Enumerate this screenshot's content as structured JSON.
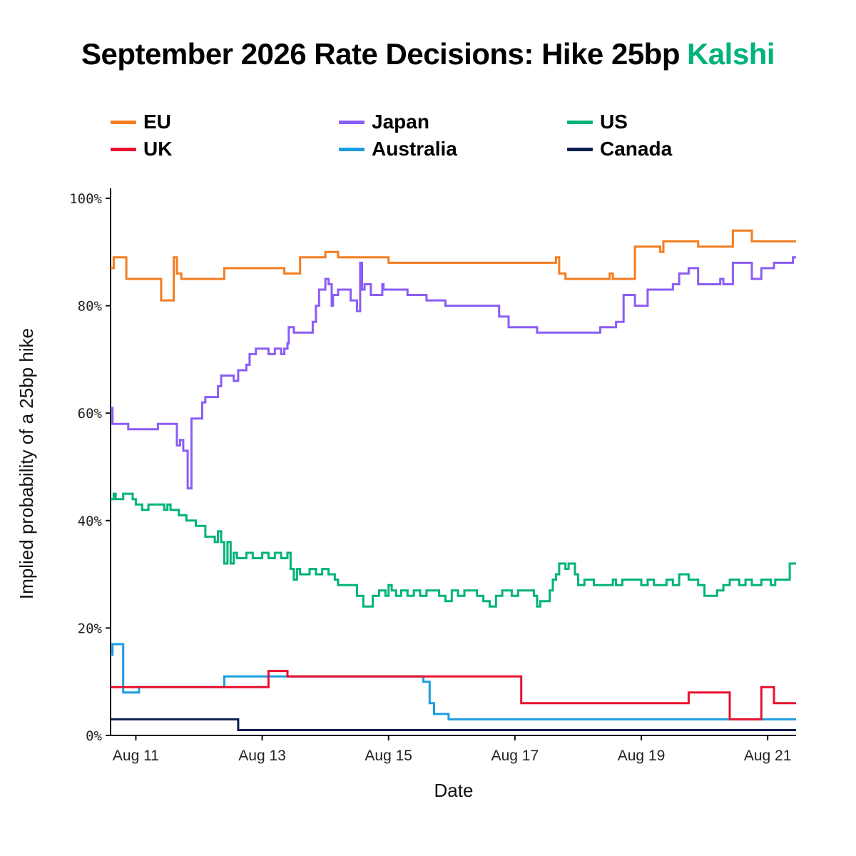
{
  "header": {
    "title": "September 2026 Rate Decisions: Hike 25bp",
    "brand": "Kalshi",
    "brand_color": "#00b27b"
  },
  "chart_data": {
    "type": "line",
    "step": true,
    "xlabel": "Date",
    "ylabel": "Implied probability of a 25bp hike",
    "xlim": [
      10.6,
      21.45
    ],
    "ylim": [
      0,
      100
    ],
    "yticks": [
      0,
      20,
      40,
      60,
      80,
      100
    ],
    "ytick_labels": [
      "0%",
      "20%",
      "40%",
      "60%",
      "80%",
      "100%"
    ],
    "xticks": [
      11,
      13,
      15,
      17,
      19,
      21
    ],
    "xtick_labels": [
      "Aug 11",
      "Aug 13",
      "Aug 15",
      "Aug 17",
      "Aug 19",
      "Aug 21"
    ],
    "grid": false,
    "legend_position": "top",
    "series": [
      {
        "name": "EU",
        "color": "#f57c1f",
        "points": [
          [
            10.6,
            87
          ],
          [
            10.65,
            89
          ],
          [
            10.85,
            85
          ],
          [
            11.4,
            81
          ],
          [
            11.6,
            89
          ],
          [
            11.65,
            86
          ],
          [
            11.72,
            85
          ],
          [
            12.4,
            87
          ],
          [
            13.35,
            86
          ],
          [
            13.6,
            89
          ],
          [
            14.0,
            90
          ],
          [
            14.2,
            89
          ],
          [
            14.38,
            89
          ],
          [
            15.0,
            88
          ],
          [
            16.2,
            88
          ],
          [
            17.65,
            89
          ],
          [
            17.7,
            86
          ],
          [
            17.8,
            85
          ],
          [
            18.5,
            86
          ],
          [
            18.55,
            85
          ],
          [
            18.9,
            91
          ],
          [
            19.3,
            90
          ],
          [
            19.35,
            92
          ],
          [
            19.9,
            91
          ],
          [
            20.3,
            91
          ],
          [
            20.45,
            94
          ],
          [
            20.75,
            92
          ],
          [
            21.45,
            92
          ]
        ]
      },
      {
        "name": "Japan",
        "color": "#8b5cf6",
        "points": [
          [
            10.6,
            61
          ],
          [
            10.63,
            58
          ],
          [
            10.88,
            57
          ],
          [
            11.35,
            58
          ],
          [
            11.65,
            54
          ],
          [
            11.7,
            55
          ],
          [
            11.75,
            53
          ],
          [
            11.82,
            46
          ],
          [
            11.88,
            59
          ],
          [
            12.05,
            62
          ],
          [
            12.1,
            63
          ],
          [
            12.3,
            65
          ],
          [
            12.35,
            67
          ],
          [
            12.55,
            66
          ],
          [
            12.62,
            68
          ],
          [
            12.75,
            69
          ],
          [
            12.8,
            71
          ],
          [
            12.9,
            72
          ],
          [
            13.0,
            72
          ],
          [
            13.1,
            71
          ],
          [
            13.2,
            72
          ],
          [
            13.3,
            71
          ],
          [
            13.35,
            72
          ],
          [
            13.4,
            73
          ],
          [
            13.42,
            76
          ],
          [
            13.5,
            75
          ],
          [
            13.8,
            77
          ],
          [
            13.85,
            80
          ],
          [
            13.9,
            83
          ],
          [
            14.0,
            85
          ],
          [
            14.05,
            84
          ],
          [
            14.1,
            80
          ],
          [
            14.12,
            82
          ],
          [
            14.2,
            83
          ],
          [
            14.4,
            81
          ],
          [
            14.5,
            79
          ],
          [
            14.55,
            88
          ],
          [
            14.58,
            83
          ],
          [
            14.62,
            84
          ],
          [
            14.72,
            82
          ],
          [
            14.9,
            84
          ],
          [
            14.92,
            83
          ],
          [
            15.3,
            82
          ],
          [
            15.6,
            81
          ],
          [
            15.9,
            80
          ],
          [
            16.75,
            78
          ],
          [
            16.9,
            76
          ],
          [
            17.35,
            75
          ],
          [
            18.1,
            75
          ],
          [
            18.35,
            76
          ],
          [
            18.6,
            77
          ],
          [
            18.72,
            82
          ],
          [
            18.9,
            80
          ],
          [
            19.1,
            83
          ],
          [
            19.5,
            84
          ],
          [
            19.6,
            86
          ],
          [
            19.75,
            87
          ],
          [
            19.9,
            84
          ],
          [
            20.25,
            85
          ],
          [
            20.3,
            84
          ],
          [
            20.45,
            88
          ],
          [
            20.75,
            85
          ],
          [
            20.9,
            87
          ],
          [
            21.1,
            88
          ],
          [
            21.4,
            89
          ],
          [
            21.45,
            89
          ]
        ]
      },
      {
        "name": "US",
        "color": "#00b27b",
        "points": [
          [
            10.6,
            44
          ],
          [
            10.65,
            45
          ],
          [
            10.68,
            44
          ],
          [
            10.8,
            45
          ],
          [
            10.95,
            44
          ],
          [
            11.0,
            43
          ],
          [
            11.1,
            42
          ],
          [
            11.2,
            43
          ],
          [
            11.45,
            42
          ],
          [
            11.5,
            43
          ],
          [
            11.55,
            42
          ],
          [
            11.68,
            41
          ],
          [
            11.8,
            40
          ],
          [
            11.95,
            39
          ],
          [
            12.1,
            37
          ],
          [
            12.25,
            36
          ],
          [
            12.3,
            38
          ],
          [
            12.35,
            36
          ],
          [
            12.4,
            32
          ],
          [
            12.45,
            36
          ],
          [
            12.5,
            32
          ],
          [
            12.55,
            34
          ],
          [
            12.6,
            33
          ],
          [
            12.75,
            34
          ],
          [
            12.85,
            33
          ],
          [
            13.0,
            34
          ],
          [
            13.1,
            33
          ],
          [
            13.2,
            34
          ],
          [
            13.3,
            33
          ],
          [
            13.4,
            34
          ],
          [
            13.45,
            31
          ],
          [
            13.5,
            29
          ],
          [
            13.55,
            31
          ],
          [
            13.6,
            30
          ],
          [
            13.75,
            31
          ],
          [
            13.85,
            30
          ],
          [
            13.95,
            31
          ],
          [
            14.05,
            30
          ],
          [
            14.15,
            29
          ],
          [
            14.2,
            28
          ],
          [
            14.5,
            26
          ],
          [
            14.6,
            24
          ],
          [
            14.75,
            26
          ],
          [
            14.85,
            27
          ],
          [
            14.95,
            26
          ],
          [
            15.0,
            28
          ],
          [
            15.05,
            27
          ],
          [
            15.12,
            26
          ],
          [
            15.2,
            27
          ],
          [
            15.3,
            26
          ],
          [
            15.4,
            27
          ],
          [
            15.5,
            26
          ],
          [
            15.6,
            27
          ],
          [
            15.8,
            26
          ],
          [
            15.9,
            25
          ],
          [
            16.0,
            27
          ],
          [
            16.1,
            26
          ],
          [
            16.2,
            27
          ],
          [
            16.4,
            26
          ],
          [
            16.5,
            25
          ],
          [
            16.6,
            24
          ],
          [
            16.7,
            26
          ],
          [
            16.8,
            27
          ],
          [
            16.95,
            26
          ],
          [
            17.05,
            27
          ],
          [
            17.3,
            26
          ],
          [
            17.35,
            24
          ],
          [
            17.4,
            25
          ],
          [
            17.55,
            27
          ],
          [
            17.6,
            29
          ],
          [
            17.65,
            30
          ],
          [
            17.7,
            32
          ],
          [
            17.8,
            31
          ],
          [
            17.85,
            32
          ],
          [
            17.95,
            30
          ],
          [
            18.0,
            28
          ],
          [
            18.1,
            29
          ],
          [
            18.25,
            28
          ],
          [
            18.55,
            29
          ],
          [
            18.6,
            28
          ],
          [
            18.7,
            29
          ],
          [
            18.9,
            29
          ],
          [
            19.0,
            28
          ],
          [
            19.1,
            29
          ],
          [
            19.2,
            28
          ],
          [
            19.4,
            29
          ],
          [
            19.5,
            28
          ],
          [
            19.6,
            30
          ],
          [
            19.75,
            29
          ],
          [
            19.9,
            28
          ],
          [
            20.0,
            26
          ],
          [
            20.2,
            27
          ],
          [
            20.3,
            28
          ],
          [
            20.4,
            29
          ],
          [
            20.55,
            28
          ],
          [
            20.65,
            29
          ],
          [
            20.75,
            28
          ],
          [
            20.9,
            29
          ],
          [
            21.05,
            28
          ],
          [
            21.12,
            29
          ],
          [
            21.35,
            32
          ],
          [
            21.45,
            32
          ]
        ]
      },
      {
        "name": "UK",
        "color": "#e8112d",
        "points": [
          [
            10.6,
            9
          ],
          [
            12.6,
            9
          ],
          [
            13.1,
            12
          ],
          [
            13.4,
            11
          ],
          [
            16.8,
            11
          ],
          [
            17.1,
            6
          ],
          [
            19.75,
            8
          ],
          [
            20.4,
            3
          ],
          [
            20.55,
            3
          ],
          [
            20.9,
            9
          ],
          [
            21.1,
            6
          ],
          [
            21.45,
            6
          ]
        ]
      },
      {
        "name": "Australia",
        "color": "#1a9de0",
        "points": [
          [
            10.6,
            15
          ],
          [
            10.63,
            17
          ],
          [
            10.75,
            17
          ],
          [
            10.8,
            8
          ],
          [
            11.05,
            9
          ],
          [
            12.4,
            11
          ],
          [
            15.55,
            10
          ],
          [
            15.65,
            6
          ],
          [
            15.72,
            4
          ],
          [
            15.95,
            3
          ],
          [
            21.45,
            3
          ]
        ]
      },
      {
        "name": "Canada",
        "color": "#0b1f4d",
        "points": [
          [
            10.6,
            3
          ],
          [
            12.6,
            3
          ],
          [
            12.62,
            1
          ],
          [
            21.45,
            1
          ]
        ]
      }
    ]
  }
}
